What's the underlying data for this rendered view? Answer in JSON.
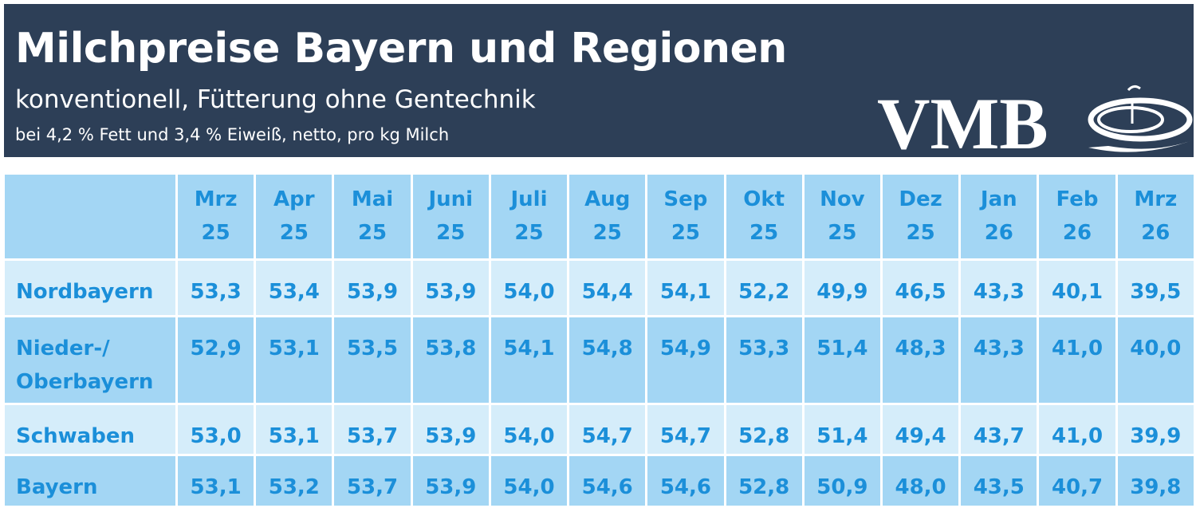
{
  "header": {
    "title": "Milchpreise Bayern und Regionen",
    "subtitle": "konventionell, Fütterung ohne Gentechnik",
    "note": "bei 4,2 % Fett und 3,4 % Eiweiß, netto, pro kg Milch",
    "logo": "VMB"
  },
  "table": {
    "columns": [
      {
        "month": "Mrz",
        "year": "25"
      },
      {
        "month": "Apr",
        "year": "25"
      },
      {
        "month": "Mai",
        "year": "25"
      },
      {
        "month": "Juni",
        "year": "25"
      },
      {
        "month": "Juli",
        "year": "25"
      },
      {
        "month": "Aug",
        "year": "25"
      },
      {
        "month": "Sep",
        "year": "25"
      },
      {
        "month": "Okt",
        "year": "25"
      },
      {
        "month": "Nov",
        "year": "25"
      },
      {
        "month": "Dez",
        "year": "25"
      },
      {
        "month": "Jan",
        "year": "26"
      },
      {
        "month": "Feb",
        "year": "26"
      },
      {
        "month": "Mrz",
        "year": "26"
      }
    ],
    "rows": [
      {
        "label": "Nordbayern",
        "values": [
          "53,3",
          "53,4",
          "53,9",
          "53,9",
          "54,0",
          "54,4",
          "54,1",
          "52,2",
          "49,9",
          "46,5",
          "43,3",
          "40,1",
          "39,5"
        ]
      },
      {
        "label": "Nieder-/ Oberbayern",
        "values": [
          "52,9",
          "53,1",
          "53,5",
          "53,8",
          "54,1",
          "54,8",
          "54,9",
          "53,3",
          "51,4",
          "48,3",
          "43,3",
          "41,0",
          "40,0"
        ]
      },
      {
        "label": "Schwaben",
        "values": [
          "53,0",
          "53,1",
          "53,7",
          "53,9",
          "54,0",
          "54,7",
          "54,7",
          "52,8",
          "51,4",
          "49,4",
          "43,7",
          "41,0",
          "39,9"
        ]
      },
      {
        "label": "Bayern",
        "values": [
          "53,1",
          "53,2",
          "53,7",
          "53,9",
          "54,0",
          "54,6",
          "54,6",
          "52,8",
          "50,9",
          "48,0",
          "43,5",
          "40,7",
          "39,8"
        ]
      }
    ]
  }
}
